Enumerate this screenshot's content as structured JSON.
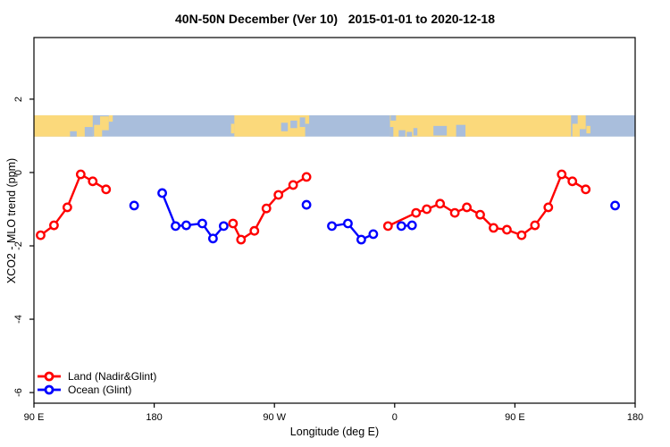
{
  "title": "40N-50N December (Ver 10)   2015-01-01 to 2020-12-18",
  "colors": {
    "background": "#FFFFFF",
    "axis": "#000000",
    "land_series": "#FF0000",
    "ocean_series": "#0000FF",
    "map_land": "#FBD97B",
    "map_ocean": "#A9BEDC"
  },
  "chart_data": {
    "type": "line",
    "title": "40N-50N December (Ver 10)   2015-01-01 to 2020-12-18",
    "xlabel": "Longitude (deg E)",
    "ylabel": "XCO2 - MLO trend (ppm)",
    "xlim": [
      90,
      540
    ],
    "ylim": [
      -6.29,
      3.68
    ],
    "grid": false,
    "x_ticks": [
      {
        "value": 90,
        "label": "90 E"
      },
      {
        "value": 180,
        "label": "180"
      },
      {
        "value": 270,
        "label": "90 W"
      },
      {
        "value": 360,
        "label": "0"
      },
      {
        "value": 450,
        "label": "90 E"
      },
      {
        "value": 540,
        "label": "180"
      }
    ],
    "y_ticks": [
      {
        "value": 2,
        "label": "2"
      },
      {
        "value": 0,
        "label": "0"
      },
      {
        "value": -2,
        "label": "-2"
      },
      {
        "value": -4,
        "label": "-4"
      },
      {
        "value": -6,
        "label": "-6"
      }
    ],
    "map_strip": {
      "value_range": [
        0.98,
        1.56
      ],
      "land_color": "#FBD97B",
      "ocean_color": "#A9BEDC",
      "land_segments": [
        [
          90,
          134
        ],
        [
          240,
          293
        ],
        [
          356.5,
          492
        ]
      ],
      "details": [
        {
          "x": [
            117,
            122
          ],
          "y": [
            0.75,
            1.0
          ],
          "type": "ocean"
        },
        {
          "x": [
            128,
            134
          ],
          "y": [
            0.55,
            1.0
          ],
          "type": "ocean"
        },
        {
          "x": [
            135,
            141
          ],
          "y": [
            0.45,
            1.0
          ],
          "type": "land"
        },
        {
          "x": [
            139.5,
            146
          ],
          "y": [
            0.05,
            0.7
          ],
          "type": "land"
        },
        {
          "x": [
            146,
            149
          ],
          "y": [
            0.0,
            0.3
          ],
          "type": "land"
        },
        {
          "x": [
            237.5,
            240
          ],
          "y": [
            0.4,
            0.85
          ],
          "type": "land"
        },
        {
          "x": [
            275,
            280
          ],
          "y": [
            0.35,
            0.75
          ],
          "type": "ocean"
        },
        {
          "x": [
            282,
            287
          ],
          "y": [
            0.25,
            0.6
          ],
          "type": "ocean"
        },
        {
          "x": [
            289,
            293
          ],
          "y": [
            0.1,
            0.55
          ],
          "type": "ocean"
        },
        {
          "x": [
            293,
            296
          ],
          "y": [
            0.0,
            0.4
          ],
          "type": "land"
        },
        {
          "x": [
            356.5,
            359
          ],
          "y": [
            0.55,
            1.0
          ],
          "type": "ocean"
        },
        {
          "x": [
            357,
            361
          ],
          "y": [
            0.0,
            0.25
          ],
          "type": "ocean"
        },
        {
          "x": [
            363,
            368
          ],
          "y": [
            0.7,
            1.0
          ],
          "type": "ocean"
        },
        {
          "x": [
            369,
            373
          ],
          "y": [
            0.78,
            1.0
          ],
          "type": "ocean"
        },
        {
          "x": [
            374,
            377
          ],
          "y": [
            0.6,
            0.95
          ],
          "type": "ocean"
        },
        {
          "x": [
            389,
            399
          ],
          "y": [
            0.5,
            0.95
          ],
          "type": "ocean"
        },
        {
          "x": [
            406,
            413
          ],
          "y": [
            0.45,
            1.0
          ],
          "type": "ocean"
        },
        {
          "x": [
            493,
            498.5
          ],
          "y": [
            0.4,
            1.0
          ],
          "type": "land"
        },
        {
          "x": [
            497,
            503
          ],
          "y": [
            0.0,
            0.65
          ],
          "type": "land"
        },
        {
          "x": [
            503.5,
            506.5
          ],
          "y": [
            0.5,
            0.85
          ],
          "type": "land"
        }
      ]
    },
    "series": [
      {
        "name": "Land (Nadir&Glint)",
        "color": "#FF0000",
        "marker": "open-circle",
        "segments": [
          [
            [
              95,
              -1.71
            ],
            [
              105,
              -1.44
            ],
            [
              115,
              -0.95
            ],
            [
              125,
              -0.05
            ],
            [
              134,
              -0.24
            ],
            [
              144,
              -0.46
            ]
          ],
          [
            [
              239,
              -1.39
            ],
            [
              245,
              -1.83
            ],
            [
              255,
              -1.59
            ],
            [
              264,
              -0.98
            ],
            [
              273,
              -0.61
            ],
            [
              284,
              -0.34
            ],
            [
              294,
              -0.12
            ]
          ],
          [
            [
              355,
              -1.46
            ],
            [
              376,
              -1.1
            ],
            [
              384,
              -1.0
            ],
            [
              394,
              -0.85
            ],
            [
              405,
              -1.1
            ],
            [
              414,
              -0.95
            ],
            [
              424,
              -1.15
            ],
            [
              434,
              -1.51
            ],
            [
              444,
              -1.56
            ],
            [
              455,
              -1.71
            ],
            [
              465,
              -1.44
            ],
            [
              475,
              -0.95
            ],
            [
              485,
              -0.05
            ],
            [
              493,
              -0.24
            ],
            [
              503,
              -0.46
            ]
          ]
        ]
      },
      {
        "name": "Ocean (Glint)",
        "color": "#0000FF",
        "marker": "open-circle",
        "segments": [
          [
            [
              165,
              -0.9
            ]
          ],
          [
            [
              186,
              -0.56
            ],
            [
              196,
              -1.46
            ],
            [
              204,
              -1.44
            ],
            [
              216,
              -1.39
            ],
            [
              224,
              -1.8
            ],
            [
              232,
              -1.46
            ]
          ],
          [
            [
              294,
              -0.88
            ]
          ],
          [
            [
              313,
              -1.46
            ],
            [
              325,
              -1.39
            ],
            [
              335,
              -1.83
            ],
            [
              344,
              -1.68
            ]
          ],
          [
            [
              365,
              -1.46
            ],
            [
              373,
              -1.44
            ]
          ],
          [
            [
              525,
              -0.9
            ]
          ]
        ]
      }
    ],
    "legend": {
      "position": "bottom-left",
      "entries": [
        "Land (Nadir&Glint)",
        "Ocean (Glint)"
      ]
    }
  }
}
